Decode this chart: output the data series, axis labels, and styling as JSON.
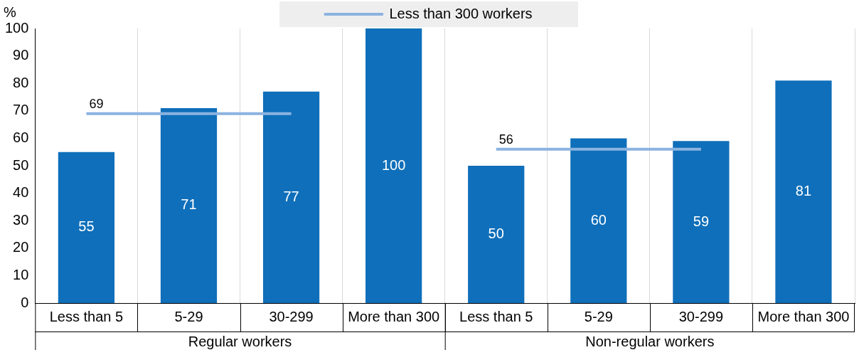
{
  "chart_data": {
    "type": "bar",
    "ylabel": "%",
    "categories": [
      "Less than 5",
      "5-29",
      "30-299",
      "More than 300",
      "Less than 5",
      "5-29",
      "30-299",
      "More than 300"
    ],
    "series": [
      {
        "color": "#0f6fba",
        "values": [
          55,
          71,
          77,
          100,
          50,
          60,
          59,
          81
        ]
      },
      {
        "type": "line",
        "name": "Less than 300 workers",
        "color": "#8cb3e0",
        "values": [
          69,
          69,
          69,
          null,
          56,
          56,
          56,
          null
        ],
        "value_labels": [
          "69",
          null,
          null,
          null,
          "56",
          null,
          null,
          null
        ]
      }
    ],
    "data_labels": true,
    "annotations": [
      "Regular workers",
      "Non-regular workers"
    ],
    "ylim": [
      0,
      100
    ],
    "yticks": [
      0,
      10,
      20,
      30,
      40,
      50,
      60,
      70,
      80,
      90,
      100
    ],
    "grid": "x",
    "legend": "top",
    "marker": "none"
  }
}
